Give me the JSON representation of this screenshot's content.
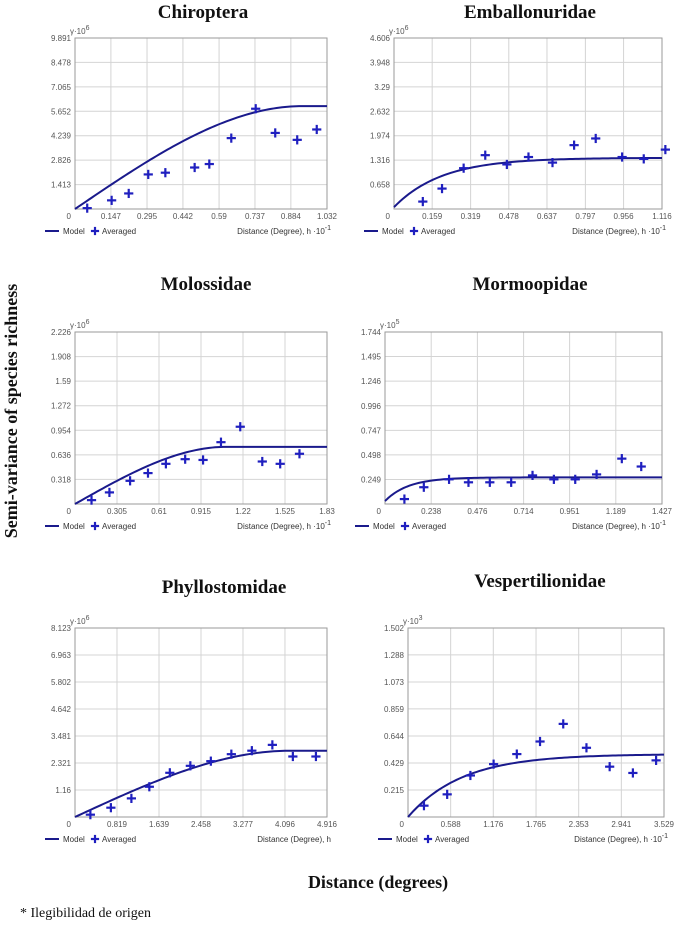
{
  "figure": {
    "y_axis_label": "Semi-variance of species richness",
    "x_axis_label": "Distance (degrees)",
    "footnote": "* Ilegibilidad de origen",
    "legend_model": "Model",
    "legend_averaged": "Averaged"
  },
  "colors": {
    "model": "#1a1a8c",
    "points": "#1f1fbf",
    "frame": "#9a9a9a",
    "grid": "#d4d4d4"
  },
  "chart_data": [
    {
      "type": "scatter",
      "title": "Chiroptera",
      "ylabel": "γ·10",
      "yexp": "6",
      "xlabel": "Distance (Degree), h",
      "xexp": "-1",
      "xticks": [
        "0",
        "0.147",
        "0.295",
        "0.442",
        "0.59",
        "0.737",
        "0.884",
        "1.032"
      ],
      "yticks": [
        "1.413",
        "2.826",
        "4.239",
        "5.652",
        "7.065",
        "8.478",
        "9.891"
      ],
      "xlim": [
        0,
        1.032
      ],
      "ylim": [
        0,
        9.891
      ],
      "points": [
        [
          0.05,
          0.05
        ],
        [
          0.15,
          0.5
        ],
        [
          0.22,
          0.9
        ],
        [
          0.3,
          2.0
        ],
        [
          0.37,
          2.1
        ],
        [
          0.49,
          2.4
        ],
        [
          0.55,
          2.6
        ],
        [
          0.64,
          4.1
        ],
        [
          0.74,
          5.8
        ],
        [
          0.82,
          4.4
        ],
        [
          0.91,
          4.0
        ],
        [
          0.99,
          4.6
        ]
      ],
      "model": {
        "type": "spherical",
        "nugget": 0,
        "sill": 5.95,
        "range": 0.93
      }
    },
    {
      "type": "scatter",
      "title": "Emballonuridae",
      "ylabel": "γ·10",
      "yexp": "6",
      "xlabel": "Distance (Degree), h",
      "xexp": "-1",
      "xticks": [
        "0",
        "0.159",
        "0.319",
        "0.478",
        "0.637",
        "0.797",
        "0.956",
        "1.116"
      ],
      "yticks": [
        "0.658",
        "1.316",
        "1.974",
        "2.632",
        "3.29",
        "3.948",
        "4.606"
      ],
      "xlim": [
        0,
        1.116
      ],
      "ylim": [
        0,
        4.606
      ],
      "points": [
        [
          0.12,
          0.2
        ],
        [
          0.2,
          0.55
        ],
        [
          0.29,
          1.1
        ],
        [
          0.38,
          1.45
        ],
        [
          0.47,
          1.2
        ],
        [
          0.56,
          1.4
        ],
        [
          0.66,
          1.25
        ],
        [
          0.75,
          1.72
        ],
        [
          0.84,
          1.9
        ],
        [
          0.95,
          1.4
        ],
        [
          1.04,
          1.35
        ],
        [
          1.13,
          1.6
        ]
      ],
      "model": {
        "type": "exponential",
        "nugget": 0.05,
        "sill": 1.38,
        "range": 0.2
      }
    },
    {
      "type": "scatter",
      "title": "Molossidae",
      "ylabel": "γ·10",
      "yexp": "6",
      "xlabel": "Distance (Degree), h",
      "xexp": "-1",
      "xticks": [
        "0",
        "0.305",
        "0.61",
        "0.915",
        "1.22",
        "1.525",
        "1.83"
      ],
      "yticks": [
        "0.318",
        "0.636",
        "0.954",
        "1.272",
        "1.59",
        "1.908",
        "2.226"
      ],
      "xlim": [
        0,
        1.83
      ],
      "ylim": [
        0,
        2.226
      ],
      "points": [
        [
          0.12,
          0.05
        ],
        [
          0.25,
          0.15
        ],
        [
          0.4,
          0.3
        ],
        [
          0.53,
          0.4
        ],
        [
          0.66,
          0.52
        ],
        [
          0.8,
          0.58
        ],
        [
          0.93,
          0.57
        ],
        [
          1.06,
          0.8
        ],
        [
          1.2,
          1.0
        ],
        [
          1.36,
          0.55
        ],
        [
          1.49,
          0.52
        ],
        [
          1.63,
          0.65
        ]
      ],
      "model": {
        "type": "spherical",
        "nugget": 0,
        "sill": 0.74,
        "range": 1.1
      }
    },
    {
      "type": "scatter",
      "title": "Mormoopidae",
      "ylabel": "γ·10",
      "yexp": "5",
      "xlabel": "Distance (Degree), h",
      "xexp": "-1",
      "xticks": [
        "0",
        "0.238",
        "0.476",
        "0.714",
        "0.951",
        "1.189",
        "1.427"
      ],
      "yticks": [
        "0.249",
        "0.498",
        "0.747",
        "0.996",
        "1.246",
        "1.495",
        "1.744"
      ],
      "xlim": [
        0,
        1.427
      ],
      "ylim": [
        0,
        1.744
      ],
      "points": [
        [
          0.1,
          0.05
        ],
        [
          0.2,
          0.17
        ],
        [
          0.33,
          0.25
        ],
        [
          0.43,
          0.22
        ],
        [
          0.54,
          0.22
        ],
        [
          0.65,
          0.22
        ],
        [
          0.76,
          0.29
        ],
        [
          0.87,
          0.25
        ],
        [
          0.98,
          0.25
        ],
        [
          1.09,
          0.3
        ],
        [
          1.22,
          0.46
        ],
        [
          1.32,
          0.38
        ]
      ],
      "model": {
        "type": "exponential",
        "nugget": 0.03,
        "sill": 0.27,
        "range": 0.12
      }
    },
    {
      "type": "scatter",
      "title": "Phyllostomidae",
      "ylabel": "γ·10",
      "yexp": "6",
      "xlabel": "Distance (Degree), h",
      "xexp": "",
      "xticks": [
        "0",
        "0.819",
        "1.639",
        "2.458",
        "3.277",
        "4.096",
        "4.916"
      ],
      "yticks": [
        "1.16",
        "2.321",
        "3.481",
        "4.642",
        "5.802",
        "6.963",
        "8.123"
      ],
      "xlim": [
        0,
        4.916
      ],
      "ylim": [
        0,
        8.123
      ],
      "points": [
        [
          0.3,
          0.1
        ],
        [
          0.7,
          0.4
        ],
        [
          1.1,
          0.8
        ],
        [
          1.45,
          1.3
        ],
        [
          1.85,
          1.9
        ],
        [
          2.25,
          2.2
        ],
        [
          2.65,
          2.4
        ],
        [
          3.05,
          2.7
        ],
        [
          3.45,
          2.85
        ],
        [
          3.85,
          3.1
        ],
        [
          4.25,
          2.6
        ],
        [
          4.7,
          2.6
        ]
      ],
      "model": {
        "type": "spherical",
        "nugget": 0,
        "sill": 2.85,
        "range": 4.2
      }
    },
    {
      "type": "scatter",
      "title": "Vespertilionidae",
      "ylabel": "γ·10",
      "yexp": "3",
      "xlabel": "Distance (Degree), h",
      "xexp": "-1",
      "xticks": [
        "0",
        "0.588",
        "1.176",
        "1.765",
        "2.353",
        "2.941",
        "3.529"
      ],
      "yticks": [
        "0.215",
        "0.429",
        "0.644",
        "0.859",
        "1.073",
        "1.288",
        "1.502"
      ],
      "xlim": [
        0,
        3.529
      ],
      "ylim": [
        0,
        1.502
      ],
      "points": [
        [
          0.22,
          0.09
        ],
        [
          0.54,
          0.18
        ],
        [
          0.86,
          0.33
        ],
        [
          1.18,
          0.42
        ],
        [
          1.5,
          0.5
        ],
        [
          1.82,
          0.6
        ],
        [
          2.14,
          0.74
        ],
        [
          2.46,
          0.55
        ],
        [
          2.78,
          0.4
        ],
        [
          3.1,
          0.35
        ],
        [
          3.42,
          0.45
        ]
      ],
      "model": {
        "type": "exponential",
        "nugget": 0,
        "sill": 0.5,
        "range": 0.75
      }
    }
  ]
}
